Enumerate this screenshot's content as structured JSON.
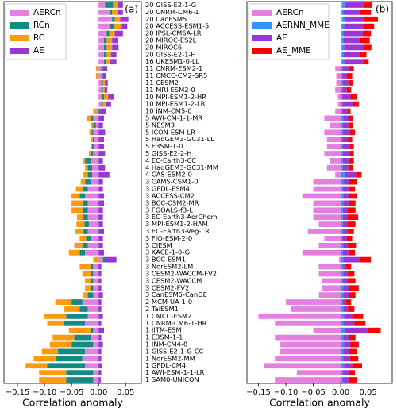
{
  "chart_data": [
    {
      "type": "bar",
      "orientation": "horizontal",
      "stacked": true,
      "panel_label": "(a)",
      "xlabel": "Correlation anomaly",
      "legend": "upper left",
      "categories": [
        "20 GISS-E2-1-G",
        "20 CNRM-CM6-1",
        "20 CanESM5",
        "20 ACCESS-ESM1-5",
        "20 IPSL-CM6A-LR",
        "20 MIROC-ES2L",
        "20 MIROC6",
        "20 GISS-E2-1-H",
        "16 UKESM1-0-LL",
        "11 CNRM-ESM2-1",
        "11 CMCC-CM2-SR5",
        "11 CESM2",
        "11 MRI-ESM2-0",
        "10 MPI-ESM1-2-HR",
        "10 MPI-ESM1-2-LR",
        "10 INM-CM5-0",
        "5 AWI-CM-1-1-MR",
        "5 NESM3",
        "5 ICON-ESM-LR",
        "5 HadGEM3-GC31-LL",
        "5 E3SM-1-0",
        "5 GISS-E2-2-H",
        "4 EC-Earth3-CC",
        "4 HadGEM3-GC31-MM",
        "4 CAS-ESM2-0",
        "3 CAMS-CSM1-0",
        "3 GFDL-ESM4",
        "3 ACCESS-CM2",
        "3 BCC-CSM2-MR",
        "3 FGOALS-f3-L",
        "3 EC-Earth3-AerChem",
        "3 MPI-ESM1-2-HAM",
        "3 EC-Earth3-Veg-LR",
        "3 FIO-ESM-2-0",
        "3 CIESM",
        "3 KACE-1-0-G",
        "3 BCC-ESM1",
        "3 NorESM2-LM",
        "3 CESM2-WACCM-FV2",
        "3 CESM2-WACCM",
        "3 CESM2-FV2",
        "3 CanESM5-CanOE",
        "2 MCM-UA-1-0",
        "2 TaiESM1",
        "1 CMCC-ESM2",
        "1 CNRM-CM6-1-HR",
        "1 IITM-ESM",
        "1 E3SM-1-1",
        "1 INM-CM4-8",
        "1 GISS-E2-1-G-CC",
        "1 NorESM2-MM",
        "1 GFDL-CM4",
        "1 AWI-ESM-1-1-LR",
        "1 SAM0-UNICON"
      ],
      "xlim": [
        -0.175,
        0.079
      ],
      "xticks": [
        {
          "value": -0.15,
          "label": "−0.15"
        },
        {
          "value": -0.1,
          "label": "−0.10"
        },
        {
          "value": -0.05,
          "label": "−0.05"
        },
        {
          "value": 0,
          "label": "0.00"
        },
        0.05
      ],
      "series": [
        {
          "name": "AERCn",
          "color": "#e680e0",
          "values": [
            0.012,
            0.02,
            0.025,
            0.02,
            0.015,
            0.01,
            0.01,
            0.01,
            0.01,
            0.005,
            0.006,
            0.005,
            0.005,
            0.006,
            0.005,
            -0.004,
            -0.01,
            -0.005,
            -0.01,
            -0.008,
            -0.008,
            -0.01,
            -0.015,
            -0.012,
            -0.012,
            -0.015,
            -0.02,
            -0.025,
            -0.02,
            -0.02,
            -0.02,
            -0.018,
            -0.02,
            -0.015,
            -0.02,
            -0.025,
            0.008,
            -0.01,
            -0.01,
            -0.01,
            -0.01,
            -0.01,
            -0.03,
            -0.02,
            -0.02,
            -0.025,
            -0.01,
            -0.015,
            -0.01,
            -0.025,
            -0.03,
            -0.025,
            -0.01,
            -0.01
          ]
        },
        {
          "name": "RCn",
          "color": "#138a84",
          "values": [
            0.015,
            0.005,
            0.005,
            0.008,
            0.005,
            0.005,
            0.005,
            0.005,
            0.003,
            0.003,
            0.002,
            0.003,
            0.003,
            0.004,
            0.003,
            0.003,
            -0.004,
            -0.005,
            -0.003,
            -0.003,
            -0.004,
            -0.004,
            -0.01,
            -0.008,
            -0.008,
            -0.01,
            -0.01,
            -0.01,
            -0.01,
            -0.01,
            -0.008,
            -0.008,
            -0.008,
            -0.008,
            -0.01,
            -0.01,
            0.005,
            -0.005,
            -0.005,
            -0.005,
            -0.005,
            -0.01,
            -0.02,
            -0.015,
            -0.04,
            -0.04,
            -0.005,
            -0.03,
            -0.04,
            -0.05,
            -0.05,
            -0.07,
            -0.05,
            -0.05
          ]
        },
        {
          "name": "RC",
          "color": "#ff9a0e",
          "values": [
            0.008,
            0.01,
            0.01,
            0.015,
            0.01,
            0.01,
            0.01,
            0.008,
            0.008,
            -0.005,
            -0.005,
            0.004,
            0.003,
            0.008,
            0.005,
            -0.006,
            -0.008,
            -0.005,
            -0.004,
            -0.004,
            -0.003,
            -0.004,
            -0.004,
            -0.005,
            -0.008,
            -0.008,
            -0.012,
            -0.015,
            -0.02,
            -0.02,
            -0.012,
            -0.015,
            -0.015,
            -0.012,
            -0.015,
            -0.02,
            -0.01,
            -0.02,
            -0.015,
            -0.01,
            -0.01,
            -0.008,
            -0.03,
            -0.03,
            -0.04,
            -0.03,
            -0.04,
            -0.04,
            -0.04,
            -0.03,
            -0.04,
            -0.04,
            -0.05,
            -0.05
          ]
        },
        {
          "name": "AE",
          "color": "#9a36d8",
          "values": [
            0.01,
            0.01,
            0.015,
            0.01,
            0.015,
            0.01,
            0.012,
            0.01,
            0.012,
            0.008,
            0.006,
            0.005,
            0.005,
            0.01,
            0.01,
            0.01,
            0.01,
            0.008,
            0.012,
            0.01,
            0.01,
            0.012,
            0.008,
            0.012,
            0.02,
            0.008,
            0.008,
            0.01,
            0.01,
            0.008,
            0.008,
            0.008,
            0.01,
            0.008,
            0.008,
            0.01,
            0.02,
            0.005,
            0.005,
            0.005,
            0.005,
            0.008,
            0.005,
            0.005,
            0.008,
            0.005,
            0.01,
            0.005,
            0.008,
            0.005,
            0.005,
            0.006,
            0.005,
            0.004
          ]
        }
      ]
    },
    {
      "type": "bar",
      "orientation": "horizontal",
      "stacked": true,
      "panel_label": "(b)",
      "xlabel": "Correlation anomaly",
      "legend": "upper left",
      "xlim": [
        -0.171,
        0.094
      ],
      "xticks": [
        {
          "value": -0.15,
          "label": "−0.15"
        },
        {
          "value": -0.1,
          "label": "−0.10"
        },
        {
          "value": -0.05,
          "label": "−0.05"
        },
        {
          "value": 0,
          "label": "0.00"
        },
        0.05
      ],
      "series": [
        {
          "name": "AERCn",
          "color": "#e680e0",
          "values": [
            0.003,
            0.002,
            0.003,
            0.002,
            0.002,
            0.002,
            0.002,
            0.002,
            0.002,
            -0.01,
            -0.008,
            -0.008,
            -0.01,
            -0.005,
            -0.005,
            -0.01,
            -0.03,
            -0.02,
            -0.03,
            -0.025,
            -0.025,
            -0.03,
            -0.02,
            -0.025,
            -0.01,
            -0.05,
            -0.05,
            -0.07,
            -0.05,
            -0.05,
            -0.05,
            -0.04,
            -0.06,
            -0.03,
            -0.04,
            -0.07,
            -0.003,
            -0.04,
            -0.04,
            -0.035,
            -0.035,
            -0.04,
            -0.1,
            -0.09,
            -0.15,
            -0.12,
            -0.05,
            -0.12,
            -0.11,
            -0.11,
            -0.12,
            -0.14,
            -0.08,
            -0.12
          ]
        },
        {
          "name": "AERNN_MME",
          "color": "#2f96ff",
          "values": [
            0.004,
            0.003,
            0.005,
            0.004,
            0.003,
            0.003,
            0.004,
            0.003,
            0.004,
            0.004,
            0.003,
            0.004,
            0.003,
            0.003,
            0.003,
            0.003,
            0.005,
            0.004,
            0.004,
            0.003,
            0.004,
            0.004,
            0.004,
            0.004,
            0.008,
            0.005,
            0.004,
            0.005,
            0.005,
            0.004,
            0.004,
            0.004,
            0.004,
            0.003,
            0.005,
            0.004,
            0.005,
            0.004,
            0.005,
            0.004,
            0.005,
            0.005,
            0.004,
            0.005,
            0.006,
            0.005,
            0.008,
            0.005,
            0.006,
            0.005,
            0.005,
            0.006,
            0.004,
            0.004
          ]
        },
        {
          "name": "AE",
          "color": "#9a36d8",
          "values": [
            0.035,
            0.03,
            0.035,
            0.035,
            0.035,
            0.03,
            0.035,
            0.03,
            0.035,
            0.01,
            0.008,
            0.01,
            0.008,
            0.015,
            0.02,
            0.01,
            0.01,
            0.01,
            0.012,
            0.01,
            0.012,
            0.012,
            0.01,
            0.01,
            0.02,
            0.01,
            0.01,
            0.01,
            0.01,
            0.008,
            0.008,
            0.008,
            0.008,
            0.008,
            0.008,
            0.01,
            0.03,
            0.005,
            0.008,
            0.008,
            0.01,
            0.01,
            0.005,
            0.008,
            0.015,
            0.02,
            0.04,
            0.01,
            0.012,
            0.01,
            0.012,
            0.015,
            0.01,
            0.01
          ]
        },
        {
          "name": "AE_MME",
          "color": "#ff0000",
          "values": [
            0.015,
            0.02,
            0.025,
            0.02,
            0.015,
            0.018,
            0.015,
            0.012,
            0.01,
            0.01,
            0.01,
            0.008,
            0.008,
            0.012,
            0.01,
            0.005,
            0.008,
            0.008,
            0.01,
            0.008,
            0.008,
            0.008,
            0.01,
            0.008,
            0.01,
            0.015,
            0.012,
            0.015,
            0.012,
            0.015,
            0.02,
            0.015,
            0.012,
            0.01,
            0.015,
            0.012,
            0.02,
            0.01,
            0.012,
            0.015,
            0.018,
            0.012,
            0.01,
            0.012,
            0.02,
            0.02,
            0.025,
            0.012,
            0.015,
            0.015,
            0.015,
            0.018,
            0.012,
            0.015
          ]
        }
      ]
    }
  ]
}
